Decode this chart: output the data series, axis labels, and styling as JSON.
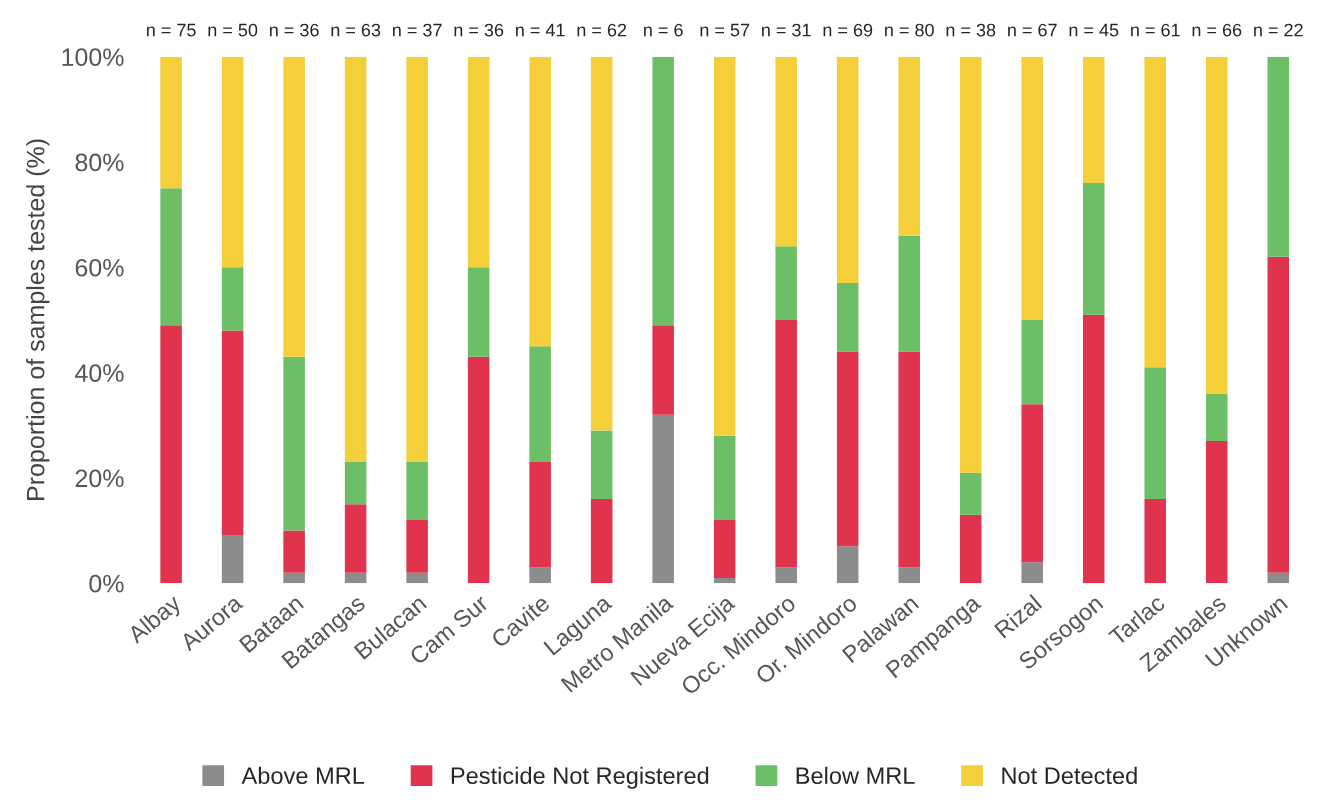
{
  "chart_data": {
    "type": "bar",
    "stacked": true,
    "ylabel": "Proportion of samples tested (%)",
    "categories": [
      "Albay",
      "Aurora",
      "Bataan",
      "Batangas",
      "Bulacan",
      "Cam Sur",
      "Cavite",
      "Laguna",
      "Metro Manila",
      "Nueva Ecija",
      "Occ. Mindoro",
      "Or. Mindoro",
      "Palawan",
      "Pampanga",
      "Rizal",
      "Sorsogon",
      "Tarlac",
      "Zambales",
      "Unknown"
    ],
    "series": [
      {
        "name": "Above MRL",
        "color": "#8c8c8c",
        "values": [
          0,
          9,
          2,
          2,
          2,
          0,
          3,
          0,
          32,
          1,
          3,
          7,
          3,
          0,
          4,
          0,
          0,
          0,
          2
        ]
      },
      {
        "name": "Pesticide Not Registered",
        "color": "#e0344e",
        "values": [
          49,
          39,
          8,
          13,
          10,
          43,
          20,
          16,
          17,
          11,
          47,
          37,
          41,
          13,
          30,
          51,
          16,
          27,
          60
        ]
      },
      {
        "name": "Below MRL",
        "color": "#6dbf67",
        "values": [
          26,
          12,
          33,
          8,
          11,
          17,
          22,
          13,
          51,
          16,
          14,
          13,
          22,
          8,
          16,
          25,
          25,
          9,
          38
        ]
      },
      {
        "name": "Not Detected",
        "color": "#f5cf3a",
        "values": [
          25,
          40,
          57,
          77,
          77,
          40,
          55,
          71,
          0,
          72,
          36,
          43,
          34,
          79,
          50,
          24,
          59,
          64,
          0
        ]
      }
    ],
    "ylim": [
      0,
      100
    ],
    "yticks": [
      {
        "value": 0,
        "label": "0%"
      },
      {
        "value": 20,
        "label": "20%"
      },
      {
        "value": 40,
        "label": "40%"
      },
      {
        "value": 60,
        "label": "60%"
      },
      {
        "value": 80,
        "label": "80%"
      },
      {
        "value": 100,
        "label": "100%"
      }
    ],
    "annotations": [
      {
        "text": "n = 75",
        "x": "Albay",
        "y": 100
      },
      {
        "text": "n = 50",
        "x": "Aurora",
        "y": 100
      },
      {
        "text": "n = 36",
        "x": "Bataan",
        "y": 100
      },
      {
        "text": "n = 63",
        "x": "Batangas",
        "y": 100
      },
      {
        "text": "n = 37",
        "x": "Bulacan",
        "y": 100
      },
      {
        "text": "n = 36",
        "x": "Cam Sur",
        "y": 100
      },
      {
        "text": "n = 41",
        "x": "Cavite",
        "y": 100
      },
      {
        "text": "n = 62",
        "x": "Laguna",
        "y": 100
      },
      {
        "text": "n = 6",
        "x": "Metro Manila",
        "y": 100
      },
      {
        "text": "n = 57",
        "x": "Nueva Ecija",
        "y": 100
      },
      {
        "text": "n = 31",
        "x": "Occ. Mindoro",
        "y": 100
      },
      {
        "text": "n = 69",
        "x": "Or. Mindoro",
        "y": 100
      },
      {
        "text": "n = 80",
        "x": "Palawan",
        "y": 100
      },
      {
        "text": "n = 38",
        "x": "Pampanga",
        "y": 100
      },
      {
        "text": "n = 67",
        "x": "Rizal",
        "y": 100
      },
      {
        "text": "n = 45",
        "x": "Sorsogon",
        "y": 100
      },
      {
        "text": "n = 61",
        "x": "Tarlac",
        "y": 100
      },
      {
        "text": "n = 66",
        "x": "Zambales",
        "y": 100
      },
      {
        "text": "n = 22",
        "x": "Unknown",
        "y": 100
      }
    ],
    "legend": "bottom",
    "grid": false
  }
}
